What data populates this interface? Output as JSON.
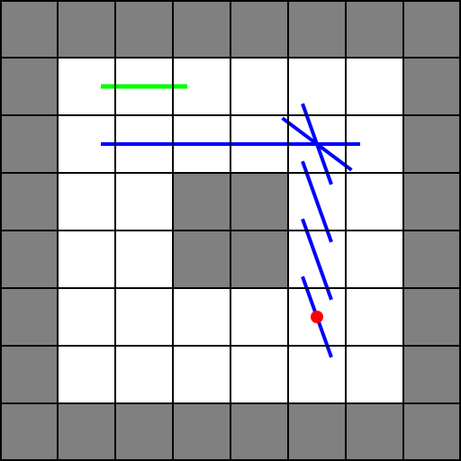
{
  "game": {
    "grid": {
      "rows": 8,
      "cols": 8
    },
    "colors": {
      "wall": "#808080",
      "floor": "#ffffff",
      "grid_line": "#000000",
      "goal_path": "#00ff00",
      "agent_path": "#0000ff",
      "agent": "#ff0000"
    },
    "wall_cells": [
      [
        0,
        0
      ],
      [
        0,
        1
      ],
      [
        0,
        2
      ],
      [
        0,
        3
      ],
      [
        0,
        4
      ],
      [
        0,
        5
      ],
      [
        0,
        6
      ],
      [
        0,
        7
      ],
      [
        1,
        0
      ],
      [
        1,
        7
      ],
      [
        2,
        0
      ],
      [
        2,
        7
      ],
      [
        3,
        0
      ],
      [
        3,
        3
      ],
      [
        3,
        4
      ],
      [
        3,
        7
      ],
      [
        4,
        0
      ],
      [
        4,
        3
      ],
      [
        4,
        4
      ],
      [
        4,
        7
      ],
      [
        5,
        0
      ],
      [
        5,
        7
      ],
      [
        6,
        0
      ],
      [
        6,
        7
      ],
      [
        7,
        0
      ],
      [
        7,
        1
      ],
      [
        7,
        2
      ],
      [
        7,
        3
      ],
      [
        7,
        4
      ],
      [
        7,
        5
      ],
      [
        7,
        6
      ],
      [
        7,
        7
      ]
    ],
    "goal_path": [
      [
        1.75,
        1.5
      ],
      [
        3.25,
        1.5
      ]
    ],
    "agent_path_segments": [
      [
        [
          1.75,
          2.5
        ],
        [
          6.25,
          2.5
        ]
      ],
      [
        [
          4.9,
          2.05
        ],
        [
          6.1,
          2.95
        ]
      ],
      [
        [
          5.25,
          1.8
        ],
        [
          5.75,
          3.2
        ]
      ],
      [
        [
          5.25,
          2.8
        ],
        [
          5.75,
          4.2
        ]
      ],
      [
        [
          5.25,
          3.8
        ],
        [
          5.75,
          5.2
        ]
      ],
      [
        [
          5.25,
          4.8
        ],
        [
          5.75,
          6.2
        ]
      ]
    ],
    "agent": {
      "col": 5.5,
      "row": 5.5
    }
  }
}
